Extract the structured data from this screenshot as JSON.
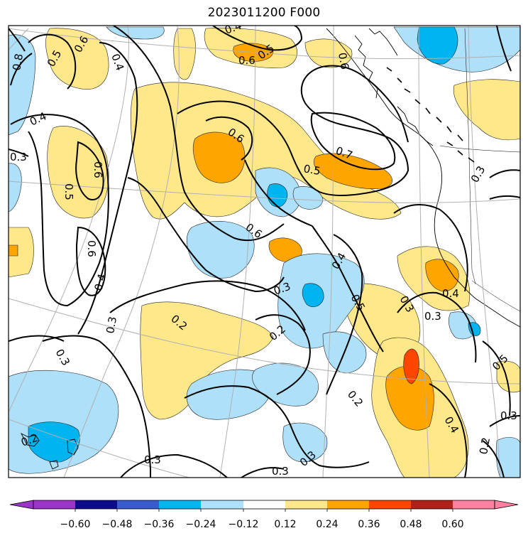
{
  "map": {
    "title": "2023011200 F000"
  },
  "contour_labels": [
    "0.6",
    "0.4",
    "0.8",
    "0.4",
    "0.3",
    "0.5",
    "0.6",
    "0.6",
    "0.5",
    "0.6",
    "0.5",
    "0.4",
    "0.6",
    "0.6",
    "0.7",
    "0.5",
    "0.6",
    "0.4",
    "0.3",
    "0.3",
    "0.2",
    "0.2",
    "0.3",
    "0.5",
    "0.3",
    "0.4",
    "0.3",
    "0.4",
    "0.5",
    "0.3",
    "0.2",
    "0.3",
    "0.2",
    "0.3",
    "0.3",
    "0.4",
    "0.2",
    "0.3"
  ],
  "colorbar": {
    "ticks": [
      "−0.60",
      "−0.48",
      "−0.36",
      "−0.24",
      "−0.12",
      "0.12",
      "0.24",
      "0.36",
      "0.48",
      "0.60"
    ],
    "colors": [
      "#9b34c9",
      "#0b0b8c",
      "#3a5bd0",
      "#00b4f0",
      "#aee0fa",
      "#ffffff",
      "#ffe88a",
      "#ffa500",
      "#ff4500",
      "#b0201a",
      "#ff80a0"
    ]
  }
}
